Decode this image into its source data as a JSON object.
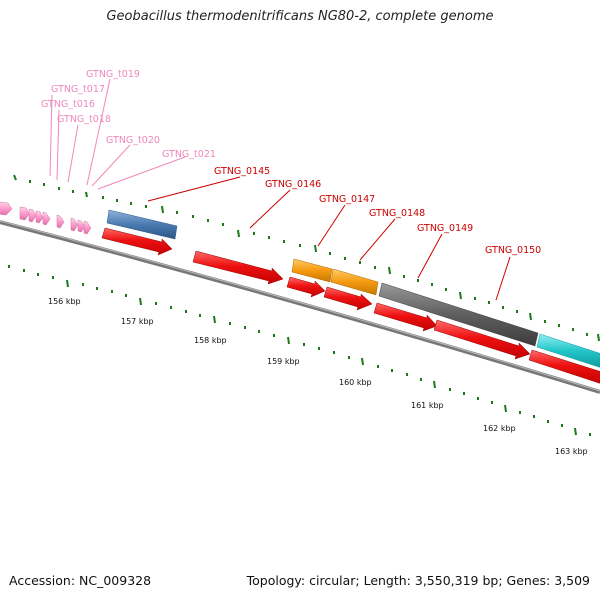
{
  "title": "Geobacillus thermodenitrificans NG80-2, complete genome",
  "footer": {
    "accession": "Accession: NC_009328",
    "topology": "Topology: circular; Length: 3,550,319 bp; Genes: 3,509"
  },
  "colors": {
    "cds_red": "#ee1111",
    "trna_pink": "#ff9ccc",
    "trna_label": "#ee88bb",
    "cds_label": "#cc0000",
    "blue": "#4a7ab0",
    "orange": "#f59a10",
    "gray": "#5f5f5f",
    "cyan": "#22c5c9",
    "tick_green": "#1a7a1a",
    "backbone": "#888888"
  },
  "trna_labels": [
    "GTNG_t019",
    "GTNG_t017",
    "GTNG_t016",
    "GTNG_t018",
    "GTNG_t020",
    "GTNG_t021"
  ],
  "cds_labels": [
    "GTNG_0145",
    "GTNG_0146",
    "GTNG_0147",
    "GTNG_0148",
    "GTNG_0149",
    "GTNG_0150"
  ],
  "kbp_labels": [
    "156 kbp",
    "157 kbp",
    "158 kbp",
    "159 kbp",
    "160 kbp",
    "161 kbp",
    "162 kbp",
    "163 kbp"
  ]
}
